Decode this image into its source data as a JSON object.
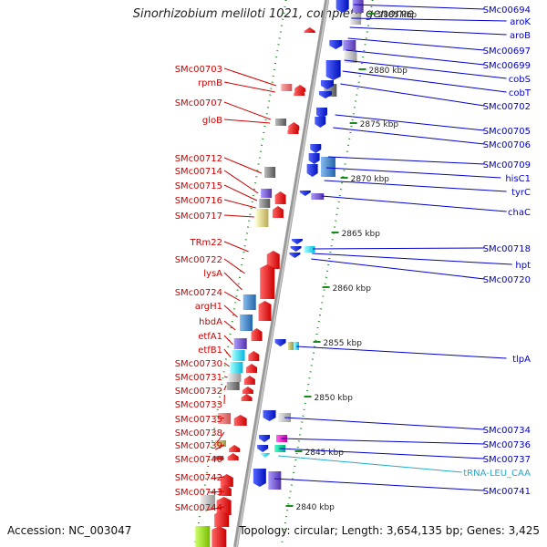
{
  "title": "Sinorhizobium meliloti 1021, complete genome",
  "footer": {
    "accession": "Accession: NC_003047",
    "topology": "Topology: circular; Length: 3,654,135 bp; Genes: 3,425"
  },
  "colors": {
    "forward": "#ee1111",
    "reverse": "#1a2bd8",
    "backbone": "#999999",
    "tick": "#1a8a1a",
    "left_label": "#cc0000",
    "right_label": "#0000cc",
    "trna": "#22aacc"
  },
  "kbp_ticks": [
    "2885 kbp",
    "2880 kbp",
    "2875 kbp",
    "2870 kbp",
    "2865 kbp",
    "2860 kbp",
    "2855 kbp",
    "2850 kbp",
    "2845 kbp",
    "2840 kbp"
  ],
  "left_genes": [
    "SMc00703",
    "rpmB",
    "SMc00707",
    "gloB",
    "SMc00712",
    "SMc00714",
    "SMc00715",
    "SMc00716",
    "SMc00717",
    "TRm22",
    "SMc00722",
    "lysA",
    "SMc00724",
    "argH1",
    "hbdA",
    "etfA1",
    "etfB1",
    "SMc00730",
    "SMc00731",
    "SMc00732",
    "SMc00733",
    "SMc00735",
    "SMc00738",
    "SMc00739",
    "SMc00740",
    "SMc00742",
    "SMc00743",
    "SMc00744"
  ],
  "right_genes": [
    "SMc00694",
    "aroK",
    "aroB",
    "SMc00697",
    "SMc00699",
    "cobS",
    "cobT",
    "SMc00702",
    "SMc00705",
    "SMc00706",
    "SMc00709",
    "hisC1",
    "tyrC",
    "chaC",
    "SMc00718",
    "hpt",
    "SMc00720",
    "tlpA",
    "SMc00734",
    "SMc00736",
    "SMc00737",
    "tRNA-LEU_CAA",
    "SMc00741"
  ]
}
